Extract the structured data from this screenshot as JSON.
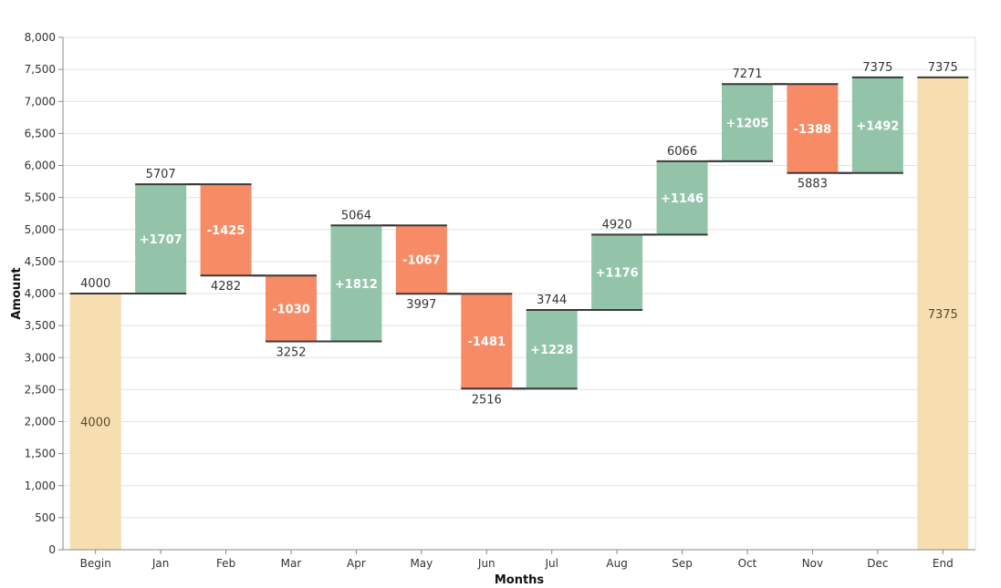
{
  "chart_data": {
    "type": "bar",
    "subtype": "waterfall",
    "xlabel": "Months",
    "ylabel": "Amount",
    "ylim": [
      0,
      8000
    ],
    "yticks": [
      0,
      500,
      1000,
      1500,
      2000,
      2500,
      3000,
      3500,
      4000,
      4500,
      5000,
      5500,
      6000,
      6500,
      7000,
      7500,
      8000
    ],
    "ytick_labels": [
      "0",
      "500",
      "1,000",
      "1,500",
      "2,000",
      "2,500",
      "3,000",
      "3,500",
      "4,000",
      "4,500",
      "5,000",
      "5,500",
      "6,000",
      "6,500",
      "7,000",
      "7,500",
      "8,000"
    ],
    "grid": true,
    "categories": [
      "Begin",
      "Jan",
      "Feb",
      "Mar",
      "Apr",
      "May",
      "Jun",
      "Jul",
      "Aug",
      "Sep",
      "Oct",
      "Nov",
      "Dec",
      "End"
    ],
    "bars": [
      {
        "category": "Begin",
        "kind": "total",
        "value": 4000,
        "label": "4000",
        "top_label": "4000"
      },
      {
        "category": "Jan",
        "kind": "increase",
        "start": 4000,
        "end": 5707,
        "label": "+1707",
        "end_label": "5707"
      },
      {
        "category": "Feb",
        "kind": "decrease",
        "start": 5707,
        "end": 4282,
        "label": "-1425",
        "end_label": "4282"
      },
      {
        "category": "Mar",
        "kind": "decrease",
        "start": 4282,
        "end": 3252,
        "label": "-1030",
        "end_label": "3252"
      },
      {
        "category": "Apr",
        "kind": "increase",
        "start": 3252,
        "end": 5064,
        "label": "+1812",
        "end_label": "5064"
      },
      {
        "category": "May",
        "kind": "decrease",
        "start": 5064,
        "end": 3997,
        "label": "-1067",
        "end_label": "3997"
      },
      {
        "category": "Jun",
        "kind": "decrease",
        "start": 3997,
        "end": 2516,
        "label": "-1481",
        "end_label": "2516"
      },
      {
        "category": "Jul",
        "kind": "increase",
        "start": 2516,
        "end": 3744,
        "label": "+1228",
        "end_label": "3744"
      },
      {
        "category": "Aug",
        "kind": "increase",
        "start": 3744,
        "end": 4920,
        "label": "+1176",
        "end_label": "4920"
      },
      {
        "category": "Sep",
        "kind": "increase",
        "start": 4920,
        "end": 6066,
        "label": "+1146",
        "end_label": "6066"
      },
      {
        "category": "Oct",
        "kind": "increase",
        "start": 6066,
        "end": 7271,
        "label": "+1205",
        "end_label": "7271"
      },
      {
        "category": "Nov",
        "kind": "decrease",
        "start": 7271,
        "end": 5883,
        "label": "-1388",
        "end_label": "5883"
      },
      {
        "category": "Dec",
        "kind": "increase",
        "start": 5883,
        "end": 7375,
        "label": "+1492",
        "end_label": "7375"
      },
      {
        "category": "End",
        "kind": "total",
        "value": 7375,
        "label": "7375",
        "top_label": "7375"
      }
    ],
    "colors": {
      "increase": "#93c4aa",
      "decrease": "#f78b65",
      "total": "#f6deb1",
      "connector": "#3a3a3a",
      "grid": "#e2e2e2",
      "axis": "#888888"
    }
  }
}
